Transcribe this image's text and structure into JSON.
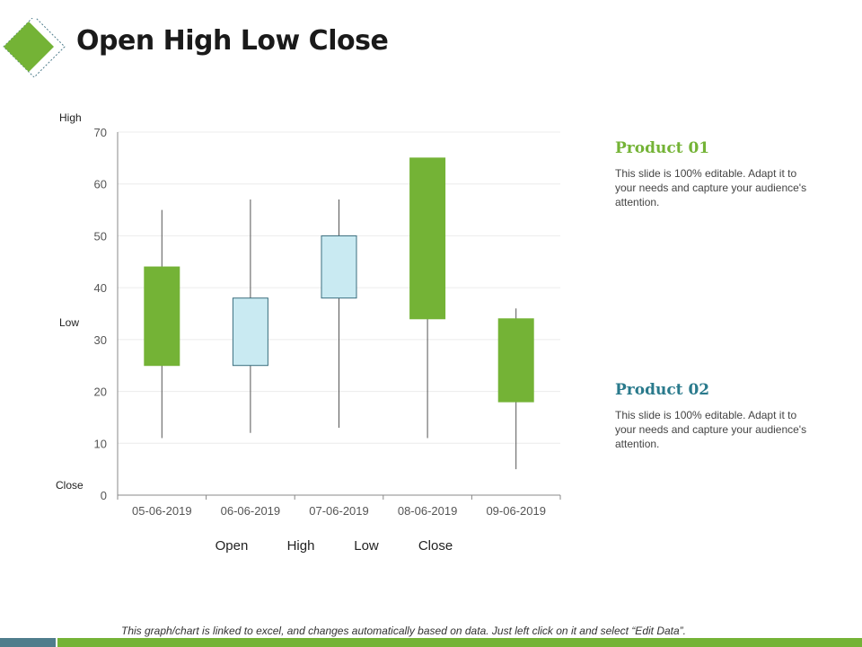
{
  "page": {
    "title": "Open High Low Close"
  },
  "colors": {
    "accent_green": "#74b336",
    "accent_teal": "#2a7a8c",
    "candle_up": "#c9eaf2",
    "candle_down": "#74b336",
    "footer_left": "#4f7d8c"
  },
  "icons": {
    "logo": "green-diamond-icon"
  },
  "side_labels": {
    "high": "High",
    "low": "Low",
    "close": "Close"
  },
  "chart_data": {
    "type": "candlestick",
    "categories": [
      "05-06-2019",
      "06-06-2019",
      "07-06-2019",
      "08-06-2019",
      "09-06-2019"
    ],
    "series": [
      {
        "name": "Open",
        "values": [
          44,
          25,
          38,
          65,
          34
        ]
      },
      {
        "name": "High",
        "values": [
          55,
          57,
          57,
          65,
          36
        ]
      },
      {
        "name": "Low",
        "values": [
          11,
          12,
          13,
          11,
          5
        ]
      },
      {
        "name": "Close",
        "values": [
          25,
          38,
          50,
          34,
          18
        ]
      }
    ],
    "legend": [
      "Open",
      "High",
      "Low",
      "Close"
    ],
    "legend_position": "bottom",
    "ylim": [
      0,
      70
    ],
    "yticks": [
      0,
      10,
      20,
      30,
      40,
      50,
      60,
      70
    ],
    "grid": true
  },
  "products": [
    {
      "title": "Product 01",
      "text": "This slide is 100% editable. Adapt it to your needs and capture your audience's attention."
    },
    {
      "title": "Product 02",
      "text": "This slide is 100% editable. Adapt it to your needs and capture your audience's attention."
    }
  ],
  "footer": {
    "note": "This graph/chart is linked to excel, and changes automatically based on data. Just left click on it and select “Edit Data”."
  }
}
